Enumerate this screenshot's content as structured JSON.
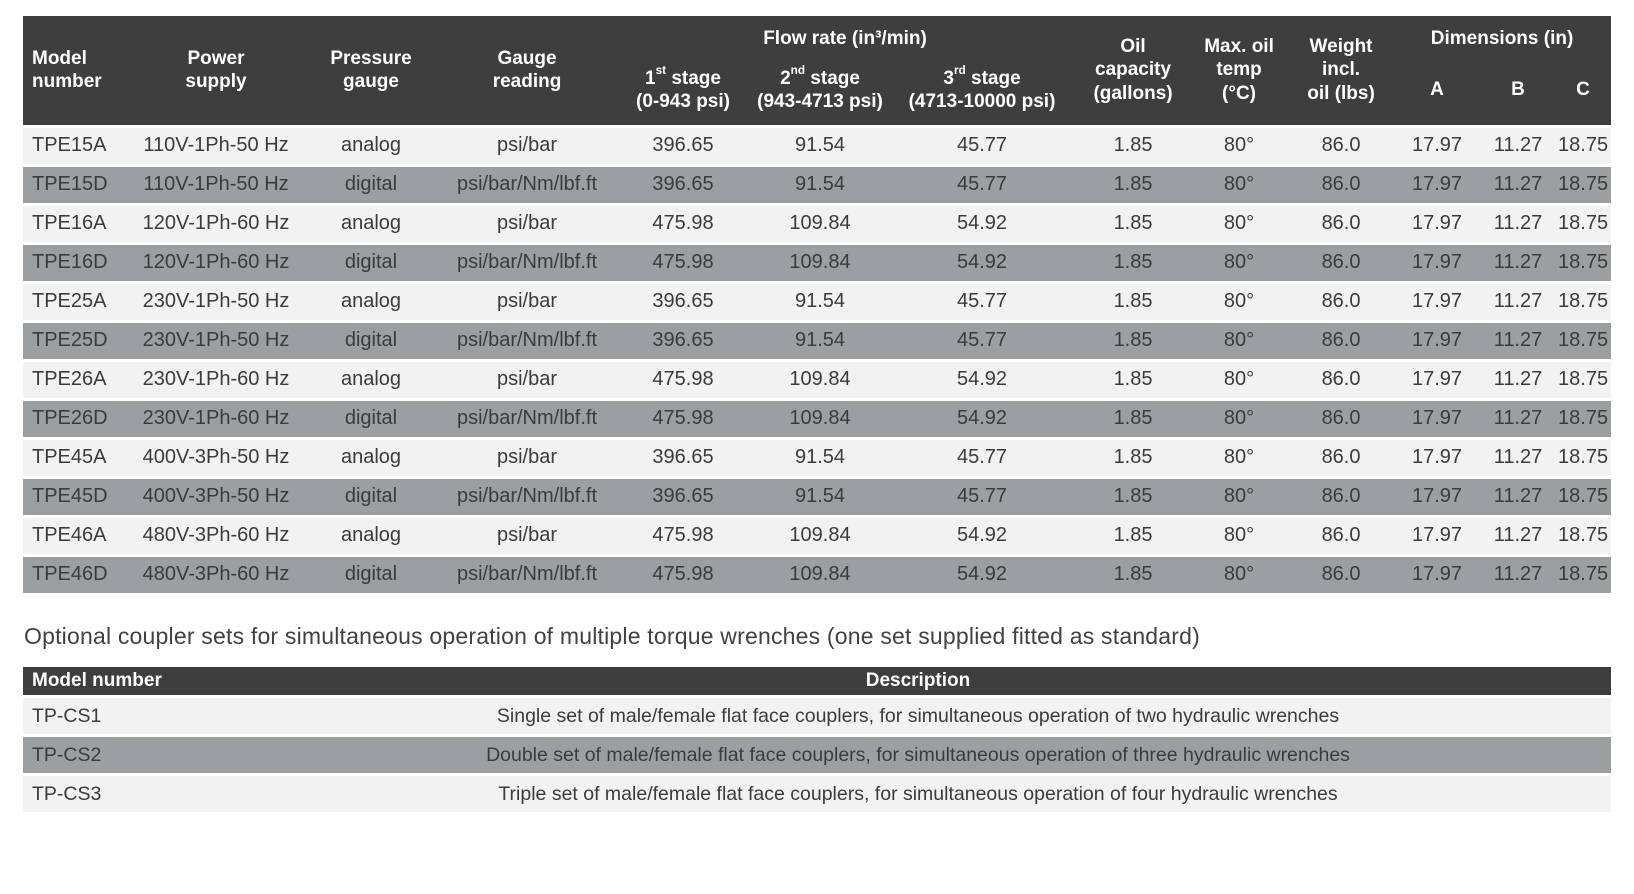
{
  "colors": {
    "header_bg": "#3e3e3e",
    "header_text": "#ffffff",
    "row_light": "#f2f2f2",
    "row_gray": "#9b9fa2",
    "body_text": "#3b3b3b"
  },
  "spec_table": {
    "headers": {
      "model": "Model\nnumber",
      "power": "Power\nsupply",
      "pressure_gauge": "Pressure\ngauge",
      "gauge_reading": "Gauge\nreading",
      "flow_group": "Flow rate (in³/min)",
      "stages": [
        {
          "num": "1",
          "sup": "st",
          "label": " stage",
          "range": "(0-943 psi)"
        },
        {
          "num": "2",
          "sup": "nd",
          "label": " stage",
          "range": "(943-4713 psi)"
        },
        {
          "num": "3",
          "sup": "rd",
          "label": " stage",
          "range": "(4713-10000 psi)"
        }
      ],
      "oil_capacity": "Oil\ncapacity\n(gallons)",
      "max_oil_temp": "Max. oil\ntemp\n(°C)",
      "weight": "Weight\nincl.\noil (lbs)",
      "dims_group": "Dimensions (in)",
      "dim_a": "A",
      "dim_b": "B",
      "dim_c": "C"
    },
    "rows": [
      [
        "TPE15A",
        "110V-1Ph-50 Hz",
        "analog",
        "psi/bar",
        "396.65",
        "91.54",
        "45.77",
        "1.85",
        "80°",
        "86.0",
        "17.97",
        "11.27",
        "18.75"
      ],
      [
        "TPE15D",
        "110V-1Ph-50 Hz",
        "digital",
        "psi/bar/Nm/lbf.ft",
        "396.65",
        "91.54",
        "45.77",
        "1.85",
        "80°",
        "86.0",
        "17.97",
        "11.27",
        "18.75"
      ],
      [
        "TPE16A",
        "120V-1Ph-60 Hz",
        "analog",
        "psi/bar",
        "475.98",
        "109.84",
        "54.92",
        "1.85",
        "80°",
        "86.0",
        "17.97",
        "11.27",
        "18.75"
      ],
      [
        "TPE16D",
        "120V-1Ph-60 Hz",
        "digital",
        "psi/bar/Nm/lbf.ft",
        "475.98",
        "109.84",
        "54.92",
        "1.85",
        "80°",
        "86.0",
        "17.97",
        "11.27",
        "18.75"
      ],
      [
        "TPE25A",
        "230V-1Ph-50 Hz",
        "analog",
        "psi/bar",
        "396.65",
        "91.54",
        "45.77",
        "1.85",
        "80°",
        "86.0",
        "17.97",
        "11.27",
        "18.75"
      ],
      [
        "TPE25D",
        "230V-1Ph-50 Hz",
        "digital",
        "psi/bar/Nm/lbf.ft",
        "396.65",
        "91.54",
        "45.77",
        "1.85",
        "80°",
        "86.0",
        "17.97",
        "11.27",
        "18.75"
      ],
      [
        "TPE26A",
        "230V-1Ph-60 Hz",
        "analog",
        "psi/bar",
        "475.98",
        "109.84",
        "54.92",
        "1.85",
        "80°",
        "86.0",
        "17.97",
        "11.27",
        "18.75"
      ],
      [
        "TPE26D",
        "230V-1Ph-60 Hz",
        "digital",
        "psi/bar/Nm/lbf.ft",
        "475.98",
        "109.84",
        "54.92",
        "1.85",
        "80°",
        "86.0",
        "17.97",
        "11.27",
        "18.75"
      ],
      [
        "TPE45A",
        "400V-3Ph-50 Hz",
        "analog",
        "psi/bar",
        "396.65",
        "91.54",
        "45.77",
        "1.85",
        "80°",
        "86.0",
        "17.97",
        "11.27",
        "18.75"
      ],
      [
        "TPE45D",
        "400V-3Ph-50 Hz",
        "digital",
        "psi/bar/Nm/lbf.ft",
        "396.65",
        "91.54",
        "45.77",
        "1.85",
        "80°",
        "86.0",
        "17.97",
        "11.27",
        "18.75"
      ],
      [
        "TPE46A",
        "480V-3Ph-60 Hz",
        "analog",
        "psi/bar",
        "475.98",
        "109.84",
        "54.92",
        "1.85",
        "80°",
        "86.0",
        "17.97",
        "11.27",
        "18.75"
      ],
      [
        "TPE46D",
        "480V-3Ph-60 Hz",
        "digital",
        "psi/bar/Nm/lbf.ft",
        "475.98",
        "109.84",
        "54.92",
        "1.85",
        "80°",
        "86.0",
        "17.97",
        "11.27",
        "18.75"
      ]
    ]
  },
  "coupler_note": "Optional coupler sets for simultaneous operation of multiple torque wrenches (one set supplied fitted as standard)",
  "coupler_table": {
    "headers": {
      "model": "Model number",
      "description": "Description"
    },
    "rows": [
      {
        "model": "TP-CS1",
        "description": "Single set of male/female flat face couplers, for simultaneous operation of two hydraulic wrenches"
      },
      {
        "model": "TP-CS2",
        "description": "Double set of male/female flat face couplers, for simultaneous operation of three hydraulic wrenches"
      },
      {
        "model": "TP-CS3",
        "description": "Triple set of male/female flat face couplers, for simultaneous operation of four hydraulic wrenches"
      }
    ]
  }
}
